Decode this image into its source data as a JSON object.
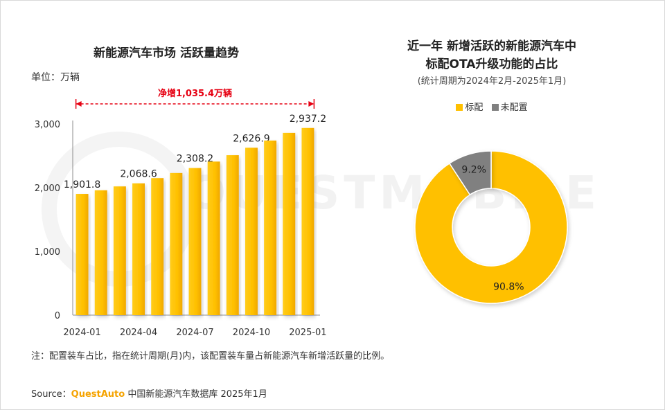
{
  "left_chart": {
    "title": "新能源汽车市场 活跃量趋势",
    "unit": "单位：万辆",
    "annotation": "净增1,035.4万辆"
  },
  "right_chart": {
    "title_line1": "近一年 新增活跃的新能源汽车中",
    "title_line2": "标配OTA升级功能的占比",
    "subtitle": "(统计周期为2024年2月-2025年1月)",
    "legend": [
      "标配",
      "未配置"
    ]
  },
  "footnote": "注：配置装车占比，指在统计周期(月)内，该配置装车量占新能源汽车新增活跃量的比例。",
  "source": {
    "prefix": "Source：",
    "brand": "QuestAuto",
    "suffix": " 中国新能源汽车数据库 2025年1月"
  },
  "watermark": "QUESTMOBILE",
  "colors": {
    "bar": "#FFC000",
    "bar_dark": "#F5A300",
    "gray": "#808080",
    "annotation": "#E60012"
  },
  "chart_data": [
    {
      "type": "bar",
      "title": "新能源汽车市场 活跃量趋势",
      "ylabel": "单位：万辆",
      "categories": [
        "2024-01",
        "2024-02",
        "2024-03",
        "2024-04",
        "2024-05",
        "2024-06",
        "2024-07",
        "2024-08",
        "2024-09",
        "2024-10",
        "2024-11",
        "2024-12",
        "2025-01"
      ],
      "x_tick_labels": [
        "2024-01",
        "2024-04",
        "2024-07",
        "2024-10",
        "2025-01"
      ],
      "values": [
        1901.8,
        1960,
        2020,
        2068.6,
        2150,
        2230,
        2308.2,
        2410,
        2510,
        2626.9,
        2740,
        2860,
        2937.2
      ],
      "data_labels": {
        "0": "1,901.8",
        "3": "2,068.6",
        "6": "2,308.2",
        "9": "2,626.9",
        "12": "2,937.2"
      },
      "yticks": [
        "0",
        "1,000",
        "2,000",
        "3,000"
      ],
      "ylim": [
        0,
        3000
      ],
      "annotation": "净增1,035.4万辆",
      "grid": false
    },
    {
      "type": "pie",
      "title": "近一年 新增活跃的新能源汽车中标配OTA升级功能的占比",
      "subtitle": "(统计周期为2024年2月-2025年1月)",
      "labels": [
        "标配",
        "未配置"
      ],
      "values": [
        90.8,
        9.2
      ],
      "value_labels": [
        "90.8%",
        "9.2%"
      ],
      "colors": [
        "#FFC000",
        "#808080"
      ],
      "donut": true,
      "legend": "top"
    }
  ]
}
